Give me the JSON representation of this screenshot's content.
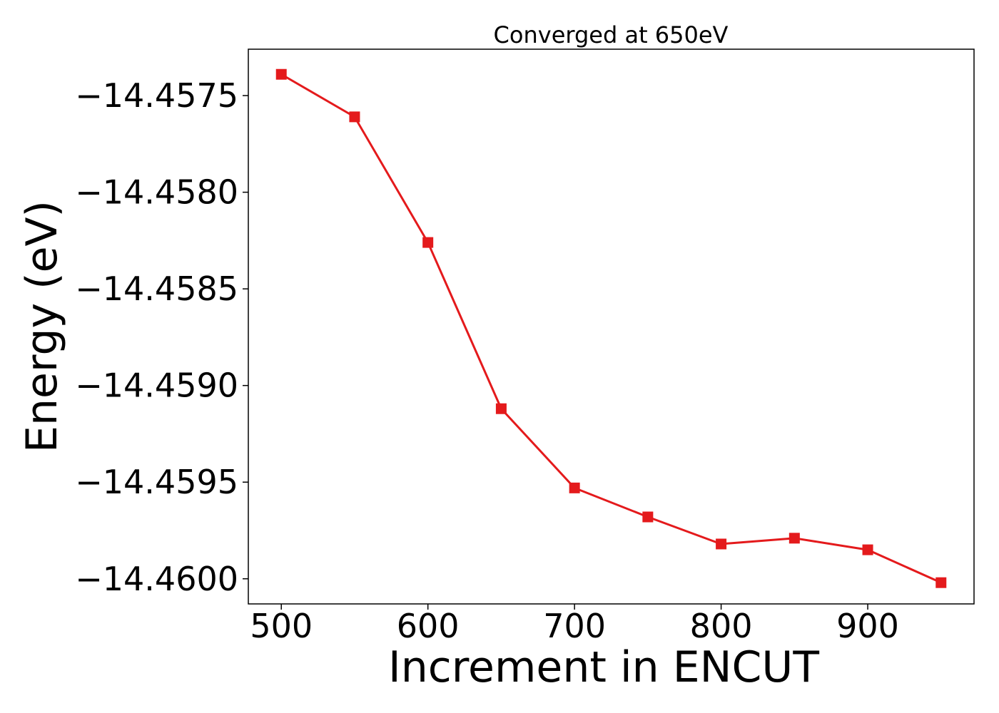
{
  "chart_data": {
    "type": "line",
    "title": "Converged at 650eV",
    "xlabel": "Increment in ENCUT",
    "ylabel": "Energy (eV)",
    "x": [
      500,
      550,
      600,
      650,
      700,
      750,
      800,
      850,
      900,
      950
    ],
    "series": [
      {
        "values": [
          -14.45739,
          -14.45761,
          -14.45826,
          -14.45912,
          -14.45953,
          -14.45968,
          -14.45982,
          -14.45979,
          -14.45985,
          -14.46002
        ],
        "color": "#e41a1c",
        "marker": "square"
      }
    ],
    "xlim": [
      477.5,
      972.5
    ],
    "ylim": [
      -14.46013,
      -14.45726
    ],
    "xticks": [
      500,
      600,
      700,
      800,
      900
    ],
    "xtick_labels": [
      "500",
      "600",
      "700",
      "800",
      "900"
    ],
    "yticks": [
      -14.4575,
      -14.458,
      -14.4585,
      -14.459,
      -14.4595,
      -14.46
    ],
    "ytick_labels": [
      "−14.4575",
      "−14.4580",
      "−14.4585",
      "−14.4590",
      "−14.4595",
      "−14.4600"
    ],
    "grid": false,
    "legend": "none"
  }
}
